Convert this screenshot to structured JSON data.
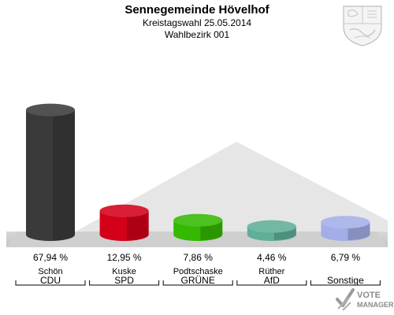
{
  "header": {
    "title": "Sennegemeinde Hövelhof",
    "subtitle": "Kreistagswahl 25.05.2014",
    "subtitle2": "Wahlbezirk 001"
  },
  "branding": {
    "logo_line1": "VOTE",
    "logo_line2": "MANAGER"
  },
  "chart_data": {
    "type": "bar",
    "title": "Sennegemeinde Hövelhof",
    "categories": [
      "CDU",
      "SPD",
      "GRÜNE",
      "AfD",
      "Sonstige"
    ],
    "candidates": [
      "Schön",
      "Kuske",
      "Podtschaske",
      "Rüther",
      ""
    ],
    "values": [
      67.94,
      12.95,
      7.86,
      4.46,
      6.79
    ],
    "value_labels": [
      "67,94 %",
      "12,95 %",
      "7,86 %",
      "4,46 %",
      "6,79 %"
    ],
    "colors": [
      "#3a3a3a",
      "#d4001a",
      "#34b800",
      "#5fae98",
      "#a3aee8"
    ],
    "ylim": [
      0,
      100
    ],
    "grid": false,
    "legend": "none"
  }
}
